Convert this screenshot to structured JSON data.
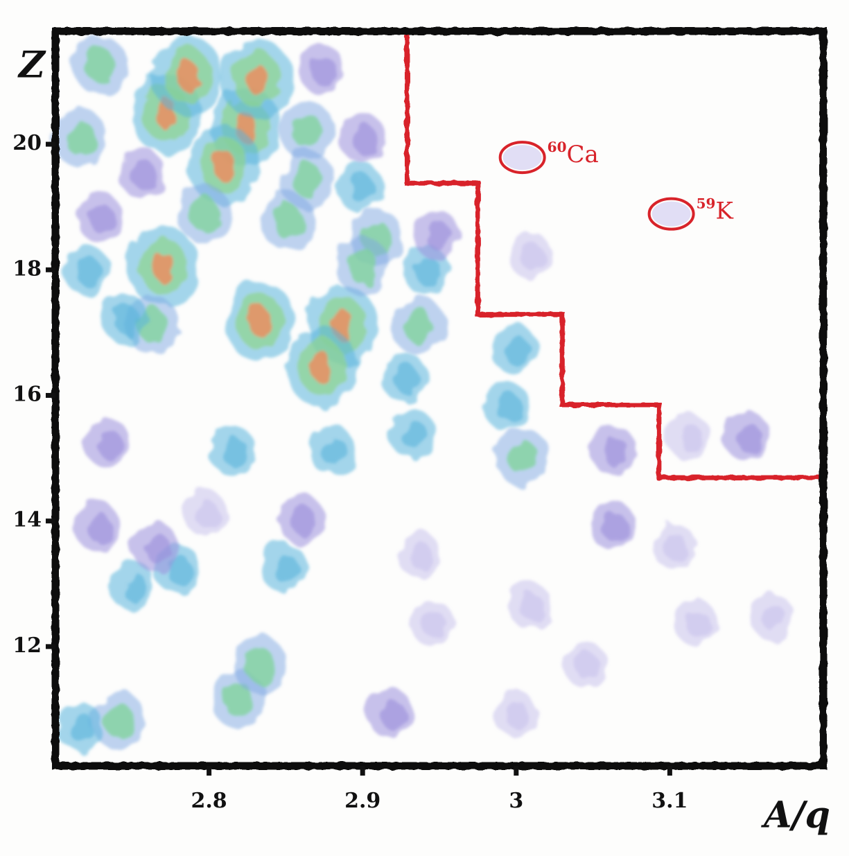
{
  "chart_data": {
    "type": "scatter",
    "y_label": "Z",
    "x_label": "A/q",
    "xlim": [
      2.7,
      3.2
    ],
    "ylim": [
      10.1,
      21.8
    ],
    "xticks": [
      2.8,
      2.9,
      3.0,
      3.1
    ],
    "yticks": [
      12,
      14,
      16,
      18,
      20
    ],
    "grid": false,
    "series": [
      {
        "color": "#f08a5d",
        "x": [
          2.772,
          2.824,
          2.831,
          2.81,
          2.77,
          2.833,
          2.887,
          2.873,
          2.786
        ],
        "y": [
          20.49,
          20.27,
          21.04,
          19.66,
          18.06,
          17.18,
          17.12,
          16.46,
          21.09
        ]
      },
      {
        "color": "#7fd39a",
        "x": [
          2.729,
          2.716,
          2.851,
          2.864,
          2.864,
          2.909,
          3.004,
          2.936,
          2.819,
          2.833,
          2.741,
          2.797,
          2.763,
          2.9
        ],
        "y": [
          21.26,
          20.1,
          18.78,
          20.21,
          19.43,
          18.5,
          15.02,
          17.12,
          11.16,
          11.71,
          10.83,
          18.89,
          17.12,
          18.06
        ]
      },
      {
        "color": "#5ab4dc",
        "x": [
          2.75,
          2.779,
          2.849,
          2.815,
          2.88,
          2.932,
          2.927,
          2.999,
          2.993,
          2.941,
          2.72,
          2.898,
          2.716,
          2.745
        ],
        "y": [
          12.97,
          13.25,
          13.25,
          15.13,
          15.13,
          15.4,
          16.29,
          16.73,
          15.85,
          18.0,
          18.0,
          19.32,
          10.72,
          17.23
        ]
      },
      {
        "color": "#9b8fdc",
        "x": [
          2.873,
          2.9,
          2.756,
          2.948,
          2.729,
          2.727,
          2.734,
          2.86,
          2.918,
          3.063,
          3.063,
          3.15,
          2.765
        ],
        "y": [
          21.2,
          20.1,
          19.54,
          18.56,
          18.83,
          13.92,
          15.24,
          14.03,
          10.94,
          15.13,
          13.92,
          15.35,
          13.59
        ]
      },
      {
        "color": "#c9c3ec",
        "x": [
          2.936,
          3.009,
          2.945,
          3.166,
          3.117,
          3.009,
          3.112,
          3.103,
          3.045,
          2.797,
          2.999
        ],
        "y": [
          13.48,
          12.65,
          12.38,
          12.49,
          12.38,
          18.23,
          15.35,
          13.59,
          11.71,
          14.14,
          10.94
        ]
      }
    ],
    "boundary": {
      "color": "#d8232a",
      "x": [
        2.929,
        2.929,
        2.975,
        2.975,
        3.03,
        3.03,
        3.093,
        3.093,
        3.2
      ],
      "y": [
        21.81,
        19.38,
        19.38,
        17.29,
        17.29,
        15.85,
        15.85,
        14.69,
        14.69
      ]
    },
    "annotations": [
      {
        "mass": "60",
        "symbol": "Ca",
        "x": 3.004,
        "y": 19.79
      },
      {
        "mass": "59",
        "symbol": "K",
        "x": 3.101,
        "y": 18.89
      }
    ]
  }
}
